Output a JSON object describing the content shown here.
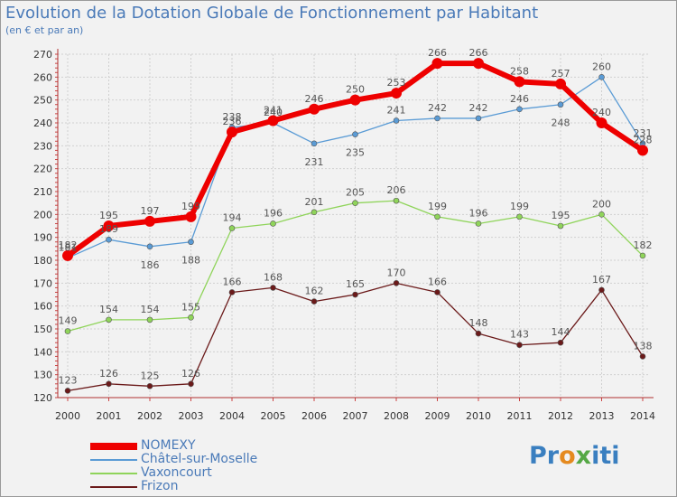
{
  "chart_data": {
    "type": "line",
    "title": "Evolution de la Dotation Globale de Fonctionnement par Habitant",
    "subtitle": "(en € et par an)",
    "xlabel": "",
    "ylabel": "",
    "ylim": [
      120,
      270
    ],
    "y_ticks": [
      120,
      130,
      140,
      150,
      160,
      170,
      180,
      190,
      200,
      210,
      220,
      230,
      240,
      250,
      260,
      270
    ],
    "grid": true,
    "legend_position": "bottom-left",
    "categories": [
      "2000",
      "2001",
      "2002",
      "2003",
      "2004",
      "2005",
      "2006",
      "2007",
      "2008",
      "2009",
      "2010",
      "2011",
      "2012",
      "2013",
      "2014"
    ],
    "series": [
      {
        "name": "Frizon",
        "color": "#6b1a1a",
        "values": [
          123,
          126,
          125,
          126,
          166,
          168,
          162,
          165,
          170,
          166,
          148,
          143,
          144,
          167,
          138
        ]
      },
      {
        "name": "Vaxoncourt",
        "color": "#8fd45a",
        "values": [
          149,
          154,
          154,
          155,
          194,
          196,
          201,
          205,
          206,
          199,
          196,
          199,
          195,
          200,
          182
        ]
      },
      {
        "name": "Châtel-sur-Moselle",
        "color": "#5a9bd5",
        "values": [
          181,
          189,
          186,
          188,
          238,
          240,
          231,
          235,
          241,
          242,
          242,
          246,
          248,
          260,
          231
        ]
      },
      {
        "name": "NOMEXY",
        "color": "#ee0000",
        "values": [
          182,
          195,
          197,
          199,
          236,
          241,
          246,
          250,
          253,
          266,
          266,
          258,
          257,
          240,
          228
        ]
      }
    ],
    "legend_order": [
      "NOMEXY",
      "Châtel-sur-Moselle",
      "Vaxoncourt",
      "Frizon"
    ]
  },
  "brand": {
    "logo_parts": [
      "Pr",
      "o",
      "x",
      "iti"
    ]
  }
}
